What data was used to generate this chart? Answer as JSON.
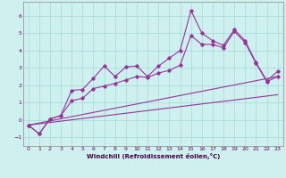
{
  "xlabel": "Windchill (Refroidissement éolien,°C)",
  "bg_color": "#cef0ee",
  "grid_color": "#aadddd",
  "line_color": "#993399",
  "xlim": [
    -0.5,
    23.5
  ],
  "ylim": [
    -1.5,
    6.8
  ],
  "xticks": [
    0,
    1,
    2,
    3,
    4,
    5,
    6,
    7,
    8,
    9,
    10,
    11,
    12,
    13,
    14,
    15,
    16,
    17,
    18,
    19,
    20,
    21,
    22,
    23
  ],
  "yticks": [
    -1,
    0,
    1,
    2,
    3,
    4,
    5,
    6
  ],
  "line1_x": [
    0,
    1,
    2,
    3,
    4,
    5,
    6,
    7,
    8,
    9,
    10,
    11,
    12,
    13,
    14,
    15,
    16,
    17,
    18,
    19,
    20,
    21,
    22,
    23
  ],
  "line1_y": [
    -0.3,
    -0.8,
    0.05,
    0.25,
    1.7,
    1.75,
    2.4,
    3.1,
    2.5,
    3.05,
    3.1,
    2.5,
    3.1,
    3.55,
    4.0,
    6.3,
    5.0,
    4.55,
    4.3,
    5.2,
    4.55,
    3.3,
    2.25,
    2.8
  ],
  "line2_x": [
    0,
    1,
    2,
    3,
    4,
    5,
    6,
    7,
    8,
    9,
    10,
    11,
    12,
    13,
    14,
    15,
    16,
    17,
    18,
    19,
    20,
    21,
    22,
    23
  ],
  "line2_y": [
    -0.3,
    -0.8,
    0.05,
    0.25,
    1.1,
    1.25,
    1.8,
    1.95,
    2.1,
    2.3,
    2.5,
    2.45,
    2.7,
    2.85,
    3.15,
    4.85,
    4.35,
    4.35,
    4.15,
    5.1,
    4.45,
    3.25,
    2.2,
    2.5
  ],
  "line3_x": [
    0,
    23
  ],
  "line3_y": [
    -0.3,
    2.5
  ],
  "line4_x": [
    0,
    23
  ],
  "line4_y": [
    -0.3,
    1.45
  ]
}
